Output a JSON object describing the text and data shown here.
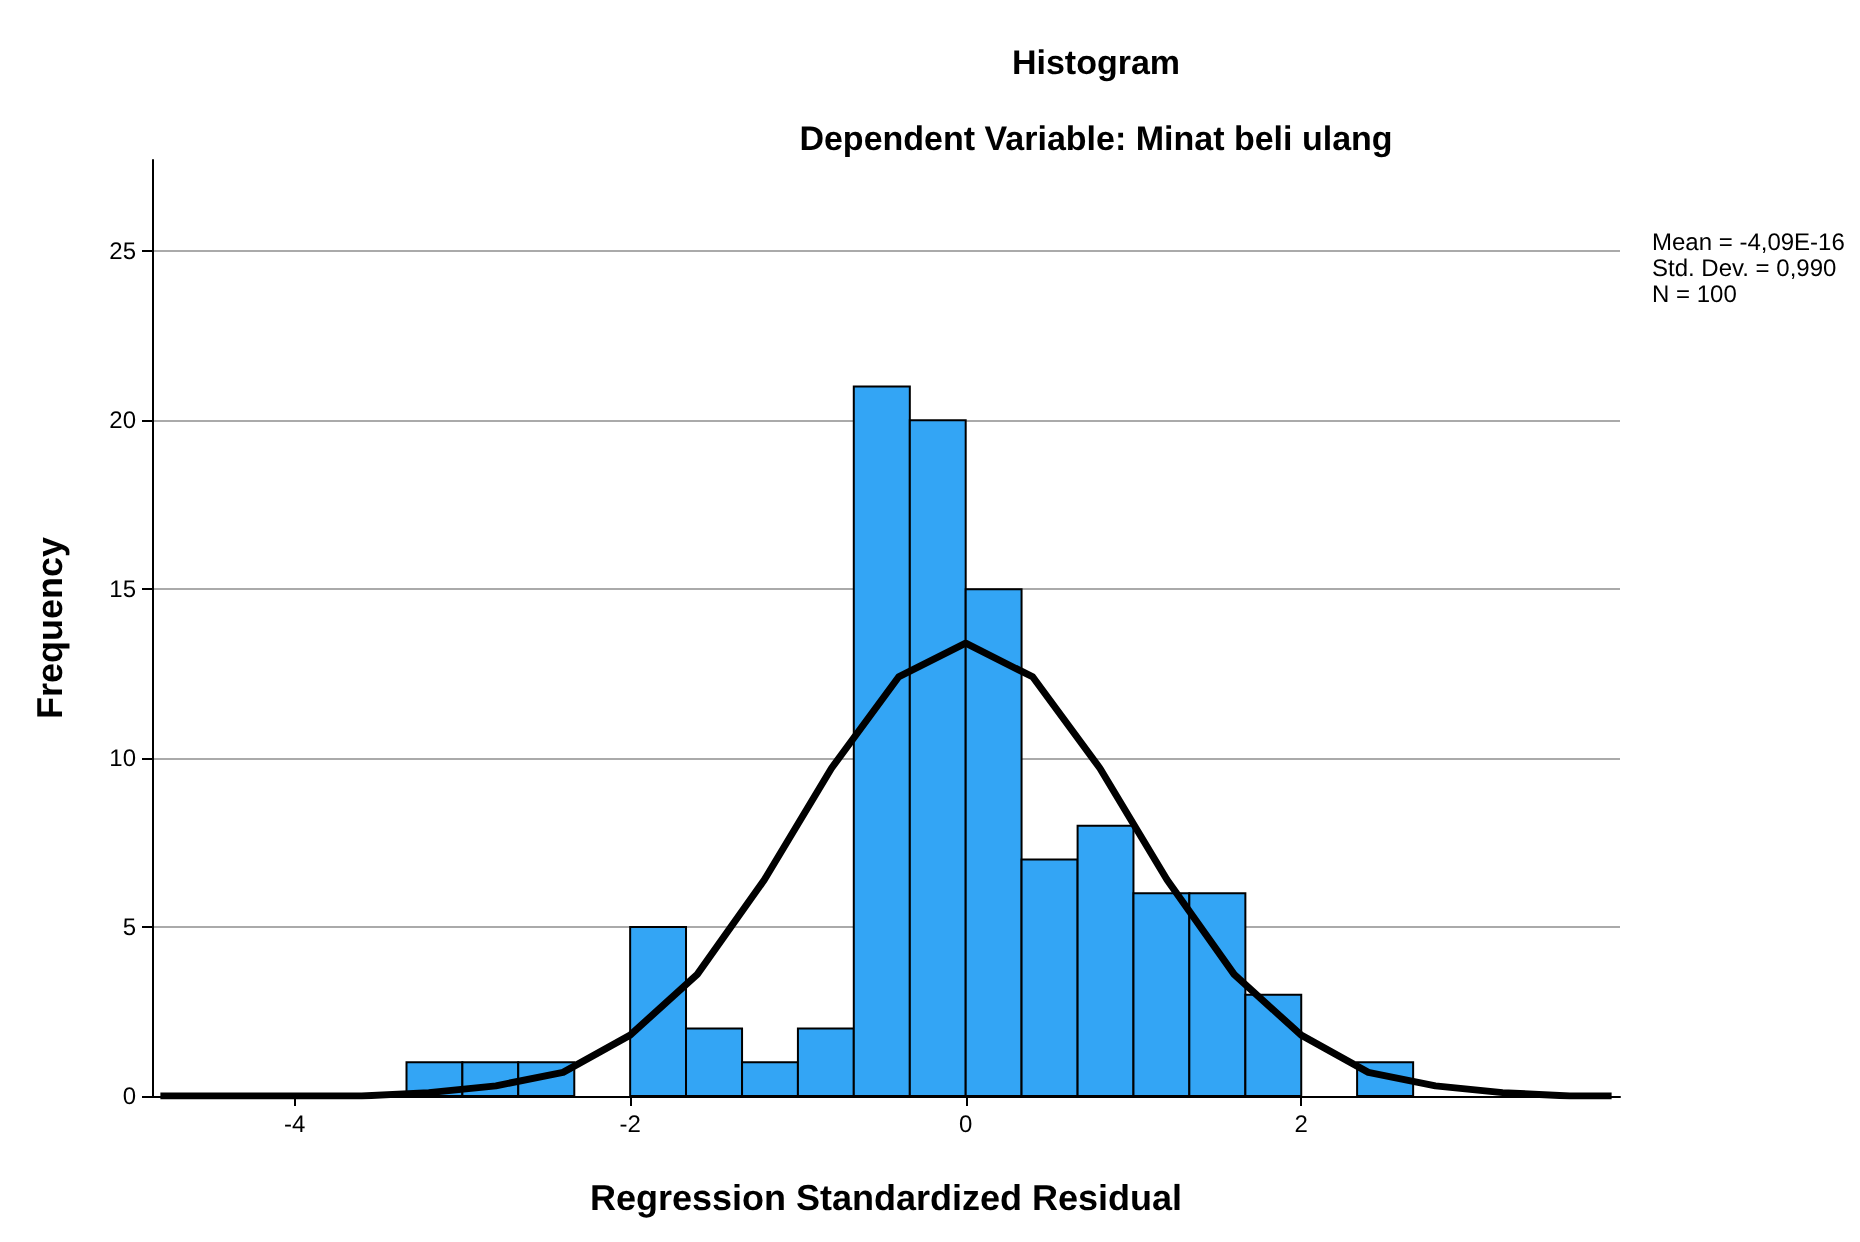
{
  "chart_data": {
    "type": "histogram",
    "title": "Histogram",
    "subtitle": "Dependent Variable: Minat beli ulang",
    "xlabel": "Regression Standardized Residual",
    "ylabel": "Frequency",
    "bins": [
      -3.333,
      -3,
      -2.667,
      -2.333,
      -2,
      -1.667,
      -1.333,
      -1,
      -0.667,
      -0.333,
      0,
      0.333,
      0.667,
      1,
      1.333,
      1.667,
      2,
      2.333,
      2.667
    ],
    "values": [
      1,
      1,
      1,
      0,
      5,
      2,
      1,
      2,
      21,
      20,
      15,
      7,
      8,
      6,
      6,
      3,
      0,
      1
    ],
    "color": "#33a5f5",
    "series": [
      {
        "type": "line",
        "color": "#000000",
        "x": [
          -4.8,
          -4.4,
          -4,
          -3.6,
          -3.2,
          -2.8,
          -2.4,
          -2,
          -1.6,
          -1.2,
          -0.8,
          -0.4,
          0,
          0.4,
          0.8,
          1.2,
          1.6,
          2,
          2.4,
          2.8,
          3.2,
          3.6,
          3.85
        ],
        "values": [
          0,
          0,
          0,
          0,
          0.1,
          0.3,
          0.7,
          1.8,
          3.6,
          6.4,
          9.7,
          12.4,
          13.4,
          12.4,
          9.7,
          6.4,
          3.6,
          1.8,
          0.7,
          0.3,
          0.1,
          0,
          0
        ]
      }
    ],
    "xlim": [
      -4.85,
      3.9
    ],
    "xticks": [
      -4,
      -2,
      0,
      2
    ],
    "ylim": [
      0,
      27.7
    ],
    "yticks": [
      0,
      5,
      10,
      15,
      20,
      25
    ],
    "grid": "y",
    "marker": "none",
    "line_style": "solid",
    "annotations": [
      "Mean = -4,09E-16",
      "Std. Dev. = 0,990",
      "N = 100"
    ]
  }
}
